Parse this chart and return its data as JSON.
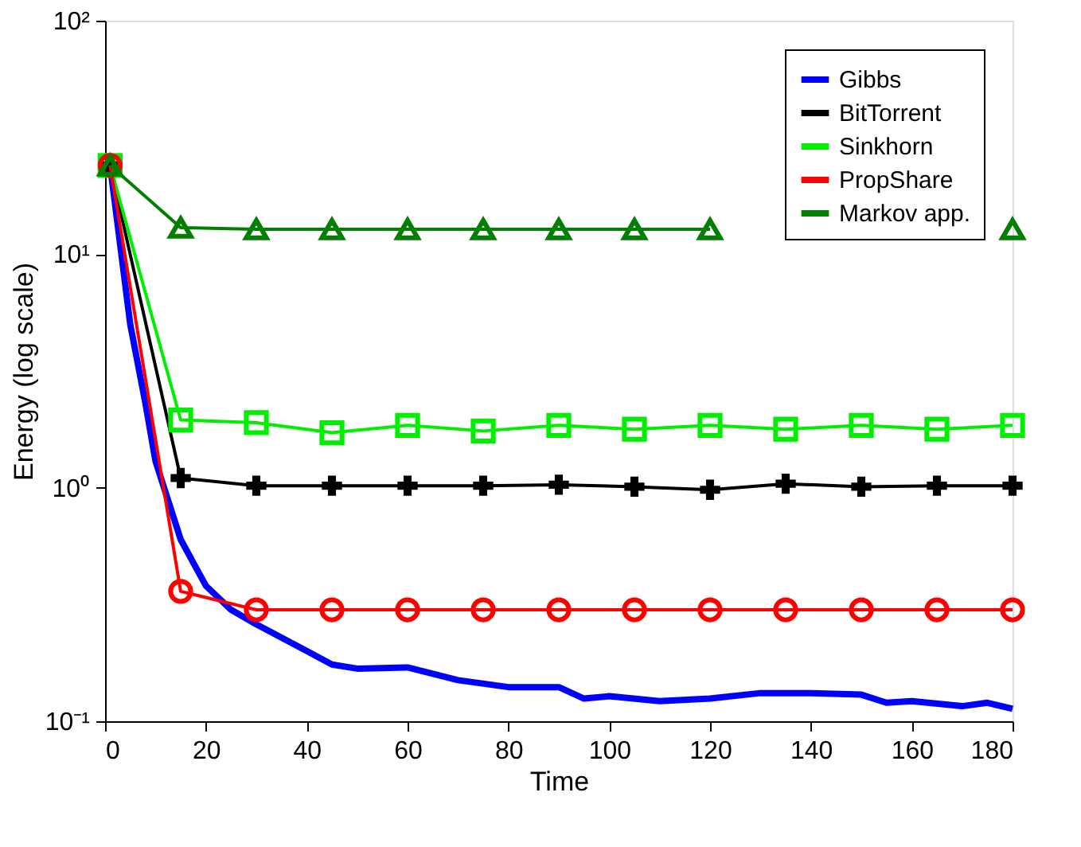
{
  "chart_data": {
    "type": "line",
    "xlabel": "Time",
    "ylabel": "Energy (log scale)",
    "log": "y",
    "xlim": [
      0,
      180
    ],
    "xticks": [
      0,
      20,
      40,
      60,
      80,
      100,
      120,
      140,
      160,
      180
    ],
    "ylim": [
      0.1,
      100
    ],
    "yticks": [
      {
        "value": 0.1,
        "label": "10⁻¹"
      },
      {
        "value": 1,
        "label": "10⁰"
      },
      {
        "value": 10,
        "label": "10¹"
      },
      {
        "value": 100,
        "label": "10²"
      }
    ],
    "grid": false,
    "legend": "top right",
    "series": [
      {
        "name": "Gibbs",
        "color": "#0000ff",
        "marker": "none",
        "x": [
          1,
          5,
          8,
          10,
          15,
          20,
          25,
          30,
          40,
          45,
          50,
          60,
          70,
          80,
          90,
          95,
          100,
          110,
          120,
          130,
          140,
          150,
          155,
          160,
          170,
          175,
          180
        ],
        "values": [
          24,
          5,
          2.3,
          1.3,
          0.6,
          0.38,
          0.3,
          0.26,
          0.2,
          0.175,
          0.168,
          0.17,
          0.15,
          0.14,
          0.14,
          0.125,
          0.128,
          0.122,
          0.125,
          0.132,
          0.132,
          0.13,
          0.12,
          0.122,
          0.116,
          0.12,
          0.113
        ]
      },
      {
        "name": "BitTorrent",
        "color": "#000000",
        "marker": "cross",
        "x": [
          1,
          15,
          30,
          45,
          60,
          75,
          90,
          105,
          120,
          135,
          150,
          165,
          180
        ],
        "values": [
          24,
          1.1,
          1.02,
          1.02,
          1.02,
          1.02,
          1.03,
          1.01,
          0.98,
          1.04,
          1.01,
          1.02,
          1.02
        ]
      },
      {
        "name": "Sinkhorn",
        "color": "#00ee00",
        "marker": "square",
        "x": [
          1,
          15,
          30,
          45,
          60,
          75,
          90,
          105,
          120,
          135,
          150,
          165,
          180
        ],
        "values": [
          24,
          1.95,
          1.9,
          1.72,
          1.85,
          1.75,
          1.85,
          1.78,
          1.85,
          1.78,
          1.85,
          1.78,
          1.85
        ]
      },
      {
        "name": "PropShare",
        "color": "#ff0000",
        "marker": "circle",
        "x": [
          1,
          15,
          30,
          45,
          60,
          75,
          90,
          105,
          120,
          135,
          150,
          165,
          180
        ],
        "values": [
          24,
          0.36,
          0.3,
          0.3,
          0.3,
          0.3,
          0.3,
          0.3,
          0.3,
          0.3,
          0.3,
          0.3,
          0.3
        ]
      },
      {
        "name": "Markov app.",
        "color": "#007f00",
        "marker": "triangle",
        "x": [
          1,
          15,
          30,
          45,
          60,
          75,
          90,
          105,
          120,
          135,
          150,
          165,
          180
        ],
        "values": [
          24,
          13,
          12.8,
          12.8,
          12.8,
          12.8,
          12.8,
          12.8,
          12.8,
          null,
          null,
          null,
          12.8
        ]
      }
    ]
  }
}
